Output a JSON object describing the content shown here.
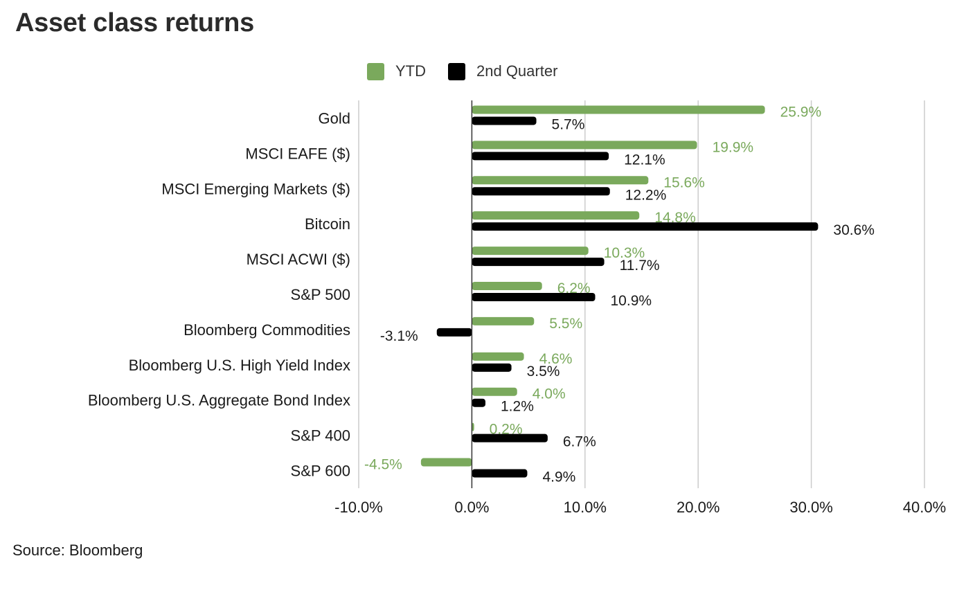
{
  "title": "Asset class returns",
  "source": "Source: Bloomberg",
  "colors": {
    "ytd": "#7aa95c",
    "quarter": "#000000",
    "grid": "#cccccc",
    "axis": "#333333",
    "text": "#1a1a1a"
  },
  "legend": [
    {
      "label": "YTD",
      "color": "#7aa95c"
    },
    {
      "label": "2nd Quarter",
      "color": "#000000"
    }
  ],
  "chart_data": {
    "type": "bar",
    "orientation": "horizontal",
    "title": "Asset class returns",
    "categories": [
      "Gold",
      "MSCI EAFE ($)",
      "MSCI Emerging Markets ($)",
      "Bitcoin",
      "MSCI ACWI ($)",
      "S&P 500",
      "Bloomberg Commodities",
      "Bloomberg U.S. High Yield Index",
      "Bloomberg U.S. Aggregate Bond Index",
      "S&P 400",
      "S&P 600"
    ],
    "series": [
      {
        "name": "YTD",
        "color": "#7aa95c",
        "values": [
          25.9,
          19.9,
          15.6,
          14.8,
          10.3,
          6.2,
          5.5,
          4.6,
          4.0,
          0.2,
          -4.5
        ],
        "labels": [
          "25.9%",
          "19.9%",
          "15.6%",
          "14.8%",
          "10.3%",
          "6.2%",
          "5.5%",
          "4.6%",
          "4.0%",
          "0.2%",
          "-4.5%"
        ]
      },
      {
        "name": "2nd Quarter",
        "color": "#000000",
        "values": [
          5.7,
          12.1,
          12.2,
          30.6,
          11.7,
          10.9,
          -3.1,
          3.5,
          1.2,
          6.7,
          4.9
        ],
        "labels": [
          "5.7%",
          "12.1%",
          "12.2%",
          "30.6%",
          "11.7%",
          "10.9%",
          "-3.1%",
          "3.5%",
          "1.2%",
          "6.7%",
          "4.9%"
        ]
      }
    ],
    "xlim": [
      -10,
      40
    ],
    "xticks": [
      -10,
      0,
      10,
      20,
      30,
      40
    ],
    "xtick_labels": [
      "-10.0%",
      "0.0%",
      "10.0%",
      "20.0%",
      "30.0%",
      "40.0%"
    ],
    "grid": true,
    "legend_position": "top"
  }
}
